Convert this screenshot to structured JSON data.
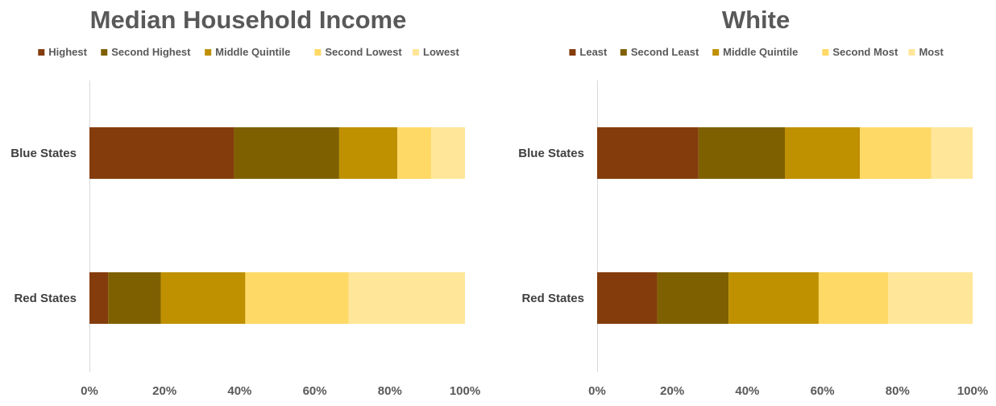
{
  "chart_data": [
    {
      "type": "bar",
      "orientation": "horizontal",
      "stacked": "percent",
      "title": "Median Household Income",
      "categories": [
        "Blue States",
        "Red States"
      ],
      "series": [
        {
          "name": "Highest",
          "color": "#843c0c",
          "values": [
            38.5,
            5
          ]
        },
        {
          "name": "Second Highest",
          "color": "#7f6000",
          "values": [
            28,
            14
          ]
        },
        {
          "name": "Middle Quintile",
          "color": "#bf9000",
          "values": [
            15.5,
            22.5
          ]
        },
        {
          "name": "Second Lowest",
          "color": "#ffd966",
          "values": [
            9,
            27.5
          ]
        },
        {
          "name": "Lowest",
          "color": "#ffe699",
          "values": [
            9,
            31
          ]
        }
      ],
      "xlim": [
        0,
        100
      ],
      "xticks": [
        "0%",
        "20%",
        "40%",
        "60%",
        "80%",
        "100%"
      ],
      "legend_position": "top",
      "grid": false
    },
    {
      "type": "bar",
      "orientation": "horizontal",
      "stacked": "percent",
      "title": "White",
      "categories": [
        "Blue States",
        "Red States"
      ],
      "series": [
        {
          "name": "Least",
          "color": "#843c0c",
          "values": [
            27,
            16
          ]
        },
        {
          "name": "Second Least",
          "color": "#7f6000",
          "values": [
            23,
            19
          ]
        },
        {
          "name": "Middle Quintile",
          "color": "#bf9000",
          "values": [
            20,
            24
          ]
        },
        {
          "name": "Second Most",
          "color": "#ffd966",
          "values": [
            19,
            18.5
          ]
        },
        {
          "name": "Most",
          "color": "#ffe699",
          "values": [
            11,
            22.5
          ]
        }
      ],
      "xlim": [
        0,
        100
      ],
      "xticks": [
        "0%",
        "20%",
        "40%",
        "60%",
        "80%",
        "100%"
      ],
      "legend_position": "top",
      "grid": false
    }
  ]
}
